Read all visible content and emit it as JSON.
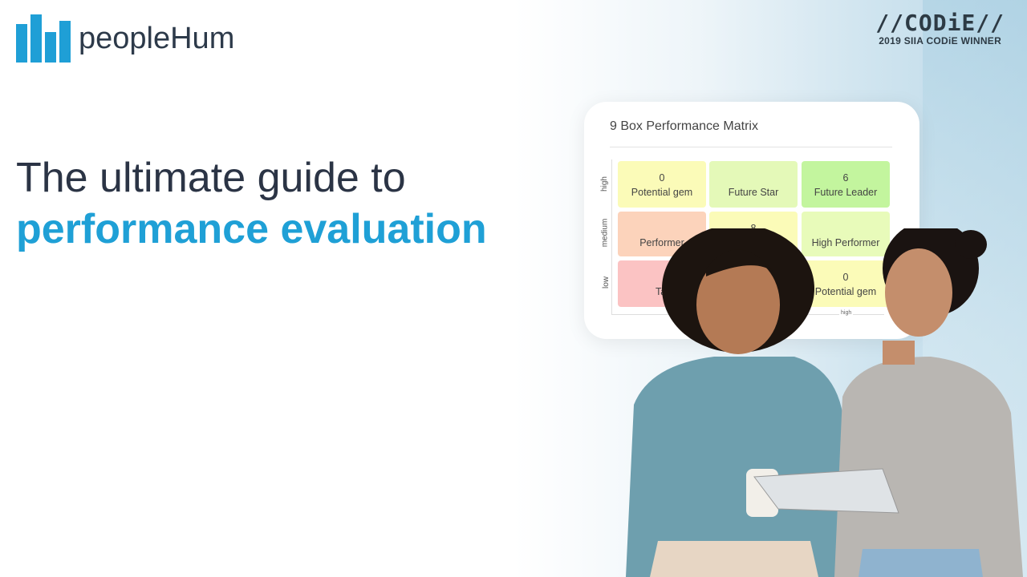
{
  "brand": {
    "name": "peopleHum",
    "color": "#1f9fd6",
    "icon": "bar-chart-logo-icon"
  },
  "badge": {
    "title": "//CODiE//",
    "subtitle": "2019 SIIA CODiE WINNER"
  },
  "headline": {
    "line1": "The ultimate guide to",
    "line2": "performance evaluation",
    "accent": "#1fa0d6"
  },
  "matrix": {
    "title": "9 Box Performance Matrix",
    "y_labels": [
      "high",
      "medium",
      "low"
    ],
    "x_label": "high",
    "cells": [
      {
        "count": "0",
        "label": "Potential gem",
        "color": "#fbfbb8"
      },
      {
        "count": "",
        "label": "Future Star",
        "color": "#e4f9b8"
      },
      {
        "count": "6",
        "label": "Future Leader",
        "color": "#c3f59e"
      },
      {
        "count": "",
        "label": "Performer",
        "color": "#fcd3bb"
      },
      {
        "count": "8",
        "label": "",
        "color": "#fbfbb8"
      },
      {
        "count": "",
        "label": "High Performer",
        "color": "#e8fbba"
      },
      {
        "count": "",
        "label": "Tal",
        "color": "#fbc3c3"
      },
      {
        "count": "",
        "label": "",
        "color": "#fbfbb8"
      },
      {
        "count": "0",
        "label": "Potential gem",
        "color": "#fbfbb8"
      }
    ]
  }
}
